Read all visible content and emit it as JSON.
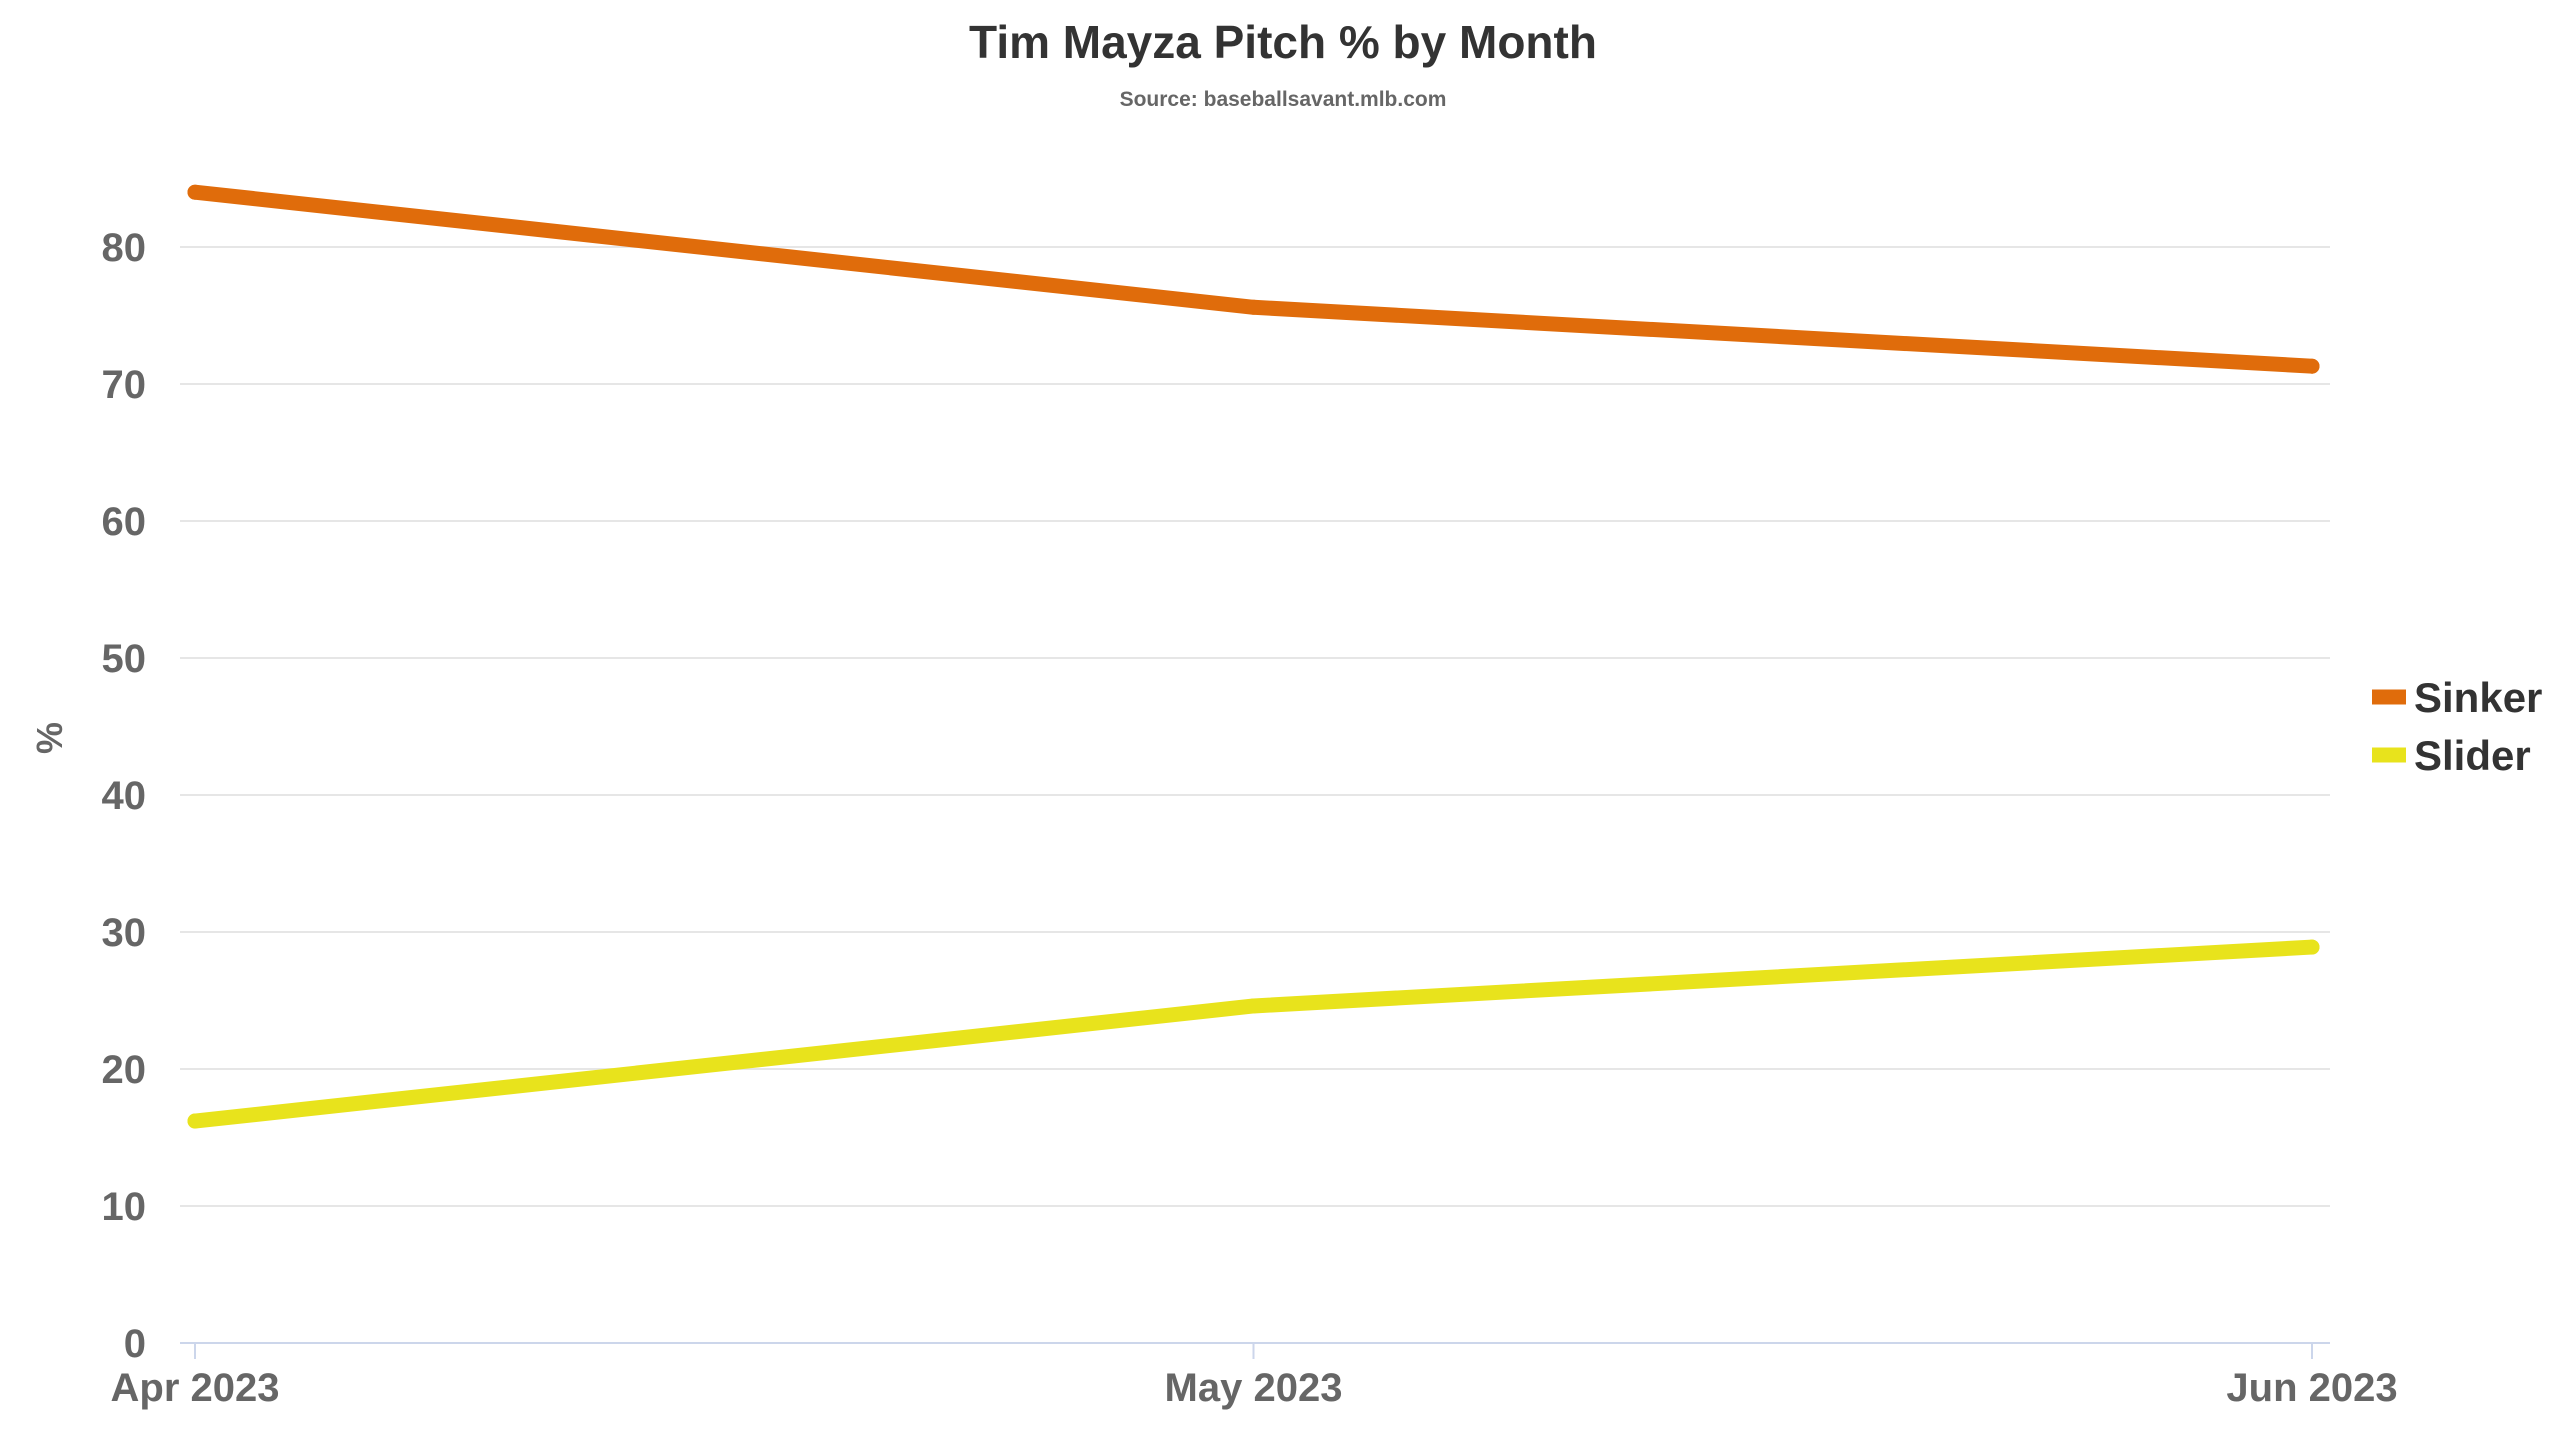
{
  "chart_data": {
    "type": "line",
    "title": "Tim Mayza Pitch % by Month",
    "subtitle": "Source: baseballsavant.mlb.com",
    "xlabel": "",
    "ylabel": "%",
    "categories": [
      "Apr 2023",
      "May 2023",
      "Jun 2023"
    ],
    "y_ticks": [
      "0",
      "10",
      "20",
      "30",
      "40",
      "50",
      "60",
      "70",
      "80"
    ],
    "ylim": [
      0,
      84
    ],
    "grid": true,
    "legend_position": "right",
    "series": [
      {
        "name": "Sinker",
        "color": "#e06c0b",
        "values": [
          84.0,
          75.6,
          71.3
        ]
      },
      {
        "name": "Slider",
        "color": "#e8e31c",
        "values": [
          16.2,
          24.6,
          28.9
        ]
      }
    ]
  }
}
